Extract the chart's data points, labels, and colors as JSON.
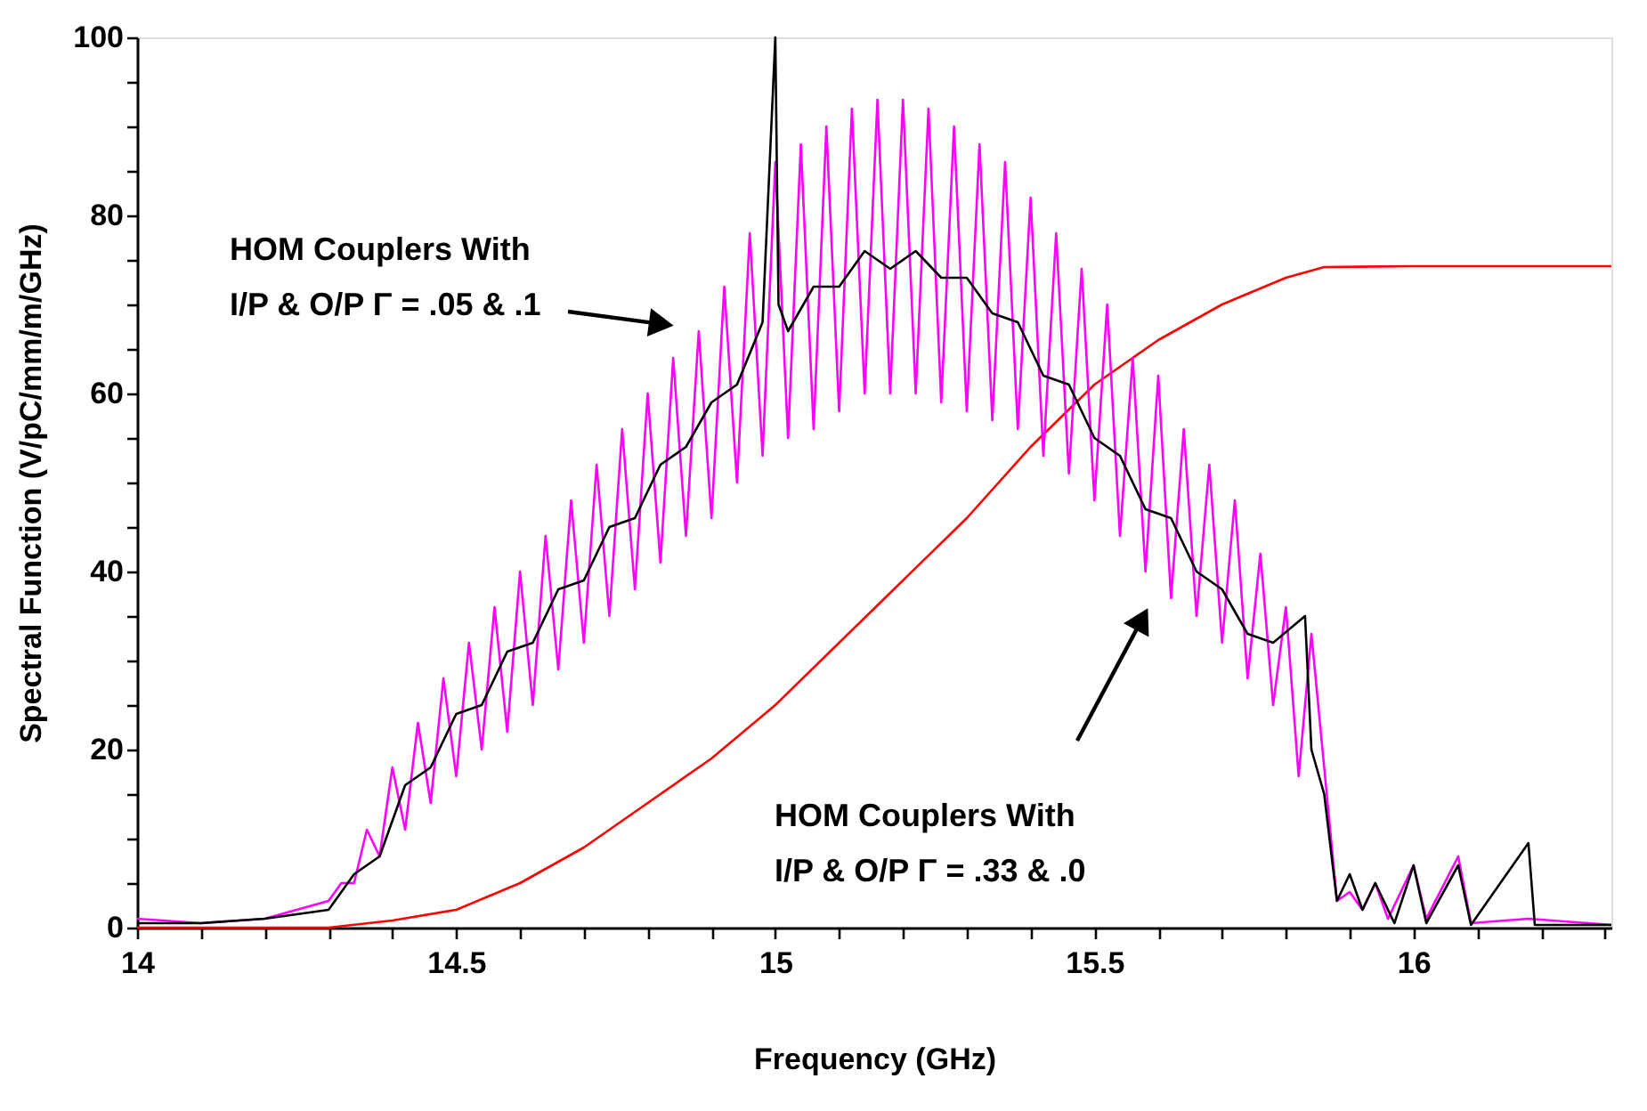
{
  "chart_data": {
    "type": "line",
    "xlabel": "Frequency (GHz)",
    "ylabel": "Spectral Function (V/pC/mm/m/GHz)",
    "xlim": [
      14,
      16.31
    ],
    "ylim": [
      0,
      100
    ],
    "xticks": [
      14,
      {
        "value": 14.1,
        "label": null
      },
      {
        "value": 14.2,
        "label": null
      },
      {
        "value": 14.3,
        "label": null
      },
      {
        "value": 14.4,
        "label": null
      },
      14.5,
      {
        "value": 14.6,
        "label": null
      },
      {
        "value": 14.7,
        "label": null
      },
      {
        "value": 14.8,
        "label": null
      },
      {
        "value": 14.9,
        "label": null
      },
      15,
      {
        "value": 15.1,
        "label": null
      },
      {
        "value": 15.2,
        "label": null
      },
      {
        "value": 15.3,
        "label": null
      },
      {
        "value": 15.4,
        "label": null
      },
      15.5,
      {
        "value": 15.6,
        "label": null
      },
      {
        "value": 15.7,
        "label": null
      },
      {
        "value": 15.8,
        "label": null
      },
      {
        "value": 15.9,
        "label": null
      },
      16,
      {
        "value": 16.1,
        "label": null
      },
      {
        "value": 16.2,
        "label": null
      },
      {
        "value": 16.3,
        "label": null
      }
    ],
    "yticks": [
      0,
      {
        "value": 5,
        "label": null
      },
      {
        "value": 10,
        "label": null
      },
      {
        "value": 15,
        "label": null
      },
      20,
      {
        "value": 25,
        "label": null
      },
      {
        "value": 30,
        "label": null
      },
      {
        "value": 35,
        "label": null
      },
      40,
      {
        "value": 45,
        "label": null
      },
      {
        "value": 50,
        "label": null
      },
      {
        "value": 55,
        "label": null
      },
      60,
      {
        "value": 65,
        "label": null
      },
      {
        "value": 70,
        "label": null
      },
      {
        "value": 75,
        "label": null
      },
      80,
      {
        "value": 85,
        "label": null
      },
      {
        "value": 90,
        "label": null
      },
      {
        "value": 95,
        "label": null
      },
      100
    ],
    "grid": false,
    "marker": "none",
    "line_style": "solid",
    "series": [
      {
        "color": "#ff0000",
        "x": [
          14.0,
          14.3,
          14.4,
          14.5,
          14.6,
          14.7,
          14.8,
          14.9,
          15.0,
          15.1,
          15.2,
          15.3,
          15.4,
          15.5,
          15.6,
          15.7,
          15.8,
          15.86,
          16.0,
          16.31
        ],
        "values": [
          0,
          0,
          0.8,
          2,
          5,
          9,
          14,
          19,
          25,
          32,
          39,
          46,
          54,
          61,
          66,
          70,
          73,
          74.2,
          74.3,
          74.3
        ]
      },
      {
        "color": "#ff00ff",
        "x": [
          14.0,
          14.1,
          14.2,
          14.3,
          14.32,
          14.34,
          14.36,
          14.38,
          14.4,
          14.42,
          14.44,
          14.46,
          14.48,
          14.5,
          14.52,
          14.54,
          14.56,
          14.58,
          14.6,
          14.62,
          14.64,
          14.66,
          14.68,
          14.7,
          14.72,
          14.74,
          14.76,
          14.78,
          14.8,
          14.82,
          14.84,
          14.86,
          14.88,
          14.9,
          14.92,
          14.94,
          14.96,
          14.98,
          15.0,
          15.02,
          15.04,
          15.06,
          15.08,
          15.1,
          15.12,
          15.14,
          15.16,
          15.18,
          15.2,
          15.22,
          15.24,
          15.26,
          15.28,
          15.3,
          15.32,
          15.34,
          15.36,
          15.38,
          15.4,
          15.42,
          15.44,
          15.46,
          15.48,
          15.5,
          15.52,
          15.54,
          15.56,
          15.58,
          15.6,
          15.62,
          15.64,
          15.66,
          15.68,
          15.7,
          15.72,
          15.74,
          15.76,
          15.78,
          15.8,
          15.82,
          15.84,
          15.86,
          15.88,
          15.9,
          15.92,
          15.94,
          15.96,
          16.0,
          16.02,
          16.07,
          16.09,
          16.18,
          16.31
        ],
        "values": [
          1,
          0.5,
          1,
          3,
          5,
          5,
          11,
          8,
          18,
          11,
          23,
          14,
          28,
          17,
          32,
          20,
          36,
          22,
          40,
          25,
          44,
          29,
          48,
          32,
          52,
          35,
          56,
          38,
          60,
          41,
          64,
          44,
          67,
          46,
          72,
          50,
          78,
          53,
          86,
          55,
          88,
          56,
          90,
          58,
          92,
          60,
          93,
          60,
          93,
          60,
          92,
          59,
          90,
          58,
          88,
          57,
          86,
          56,
          82,
          53,
          78,
          51,
          74,
          48,
          70,
          44,
          64,
          40,
          62,
          37,
          56,
          35,
          52,
          32,
          48,
          28,
          42,
          25,
          36,
          17,
          33,
          18,
          3,
          4,
          2,
          5,
          1,
          7,
          1,
          8,
          0.5,
          1,
          0.3
        ]
      },
      {
        "color": "#000000",
        "x": [
          14.0,
          14.1,
          14.2,
          14.3,
          14.34,
          14.38,
          14.42,
          14.46,
          14.5,
          14.54,
          14.58,
          14.62,
          14.66,
          14.7,
          14.74,
          14.78,
          14.82,
          14.86,
          14.9,
          14.94,
          14.98,
          15.0,
          15.005,
          15.02,
          15.06,
          15.1,
          15.14,
          15.18,
          15.22,
          15.26,
          15.3,
          15.34,
          15.38,
          15.42,
          15.46,
          15.5,
          15.54,
          15.58,
          15.62,
          15.66,
          15.7,
          15.74,
          15.78,
          15.83,
          15.84,
          15.86,
          15.88,
          15.9,
          15.92,
          15.94,
          15.97,
          16.0,
          16.02,
          16.07,
          16.09,
          16.18,
          16.19,
          16.31
        ],
        "values": [
          0.5,
          0.5,
          1,
          2,
          6,
          8,
          16,
          18,
          24,
          25,
          31,
          32,
          38,
          39,
          45,
          46,
          52,
          54,
          59,
          61,
          68,
          100,
          70,
          67,
          72,
          72,
          76,
          74,
          76,
          73,
          73,
          69,
          68,
          62,
          61,
          55,
          53,
          47,
          46,
          40,
          38,
          33,
          32,
          35,
          20,
          15,
          3,
          6,
          2,
          5,
          0.5,
          7,
          0.5,
          7,
          0.3,
          9.5,
          0.3,
          0.3
        ]
      }
    ],
    "annotations": [
      "HOM Couplers With\nI/P & O/P Γ = .05 & .1",
      "HOM Couplers With\nI/P & O/P Γ = .33 & .0"
    ]
  }
}
